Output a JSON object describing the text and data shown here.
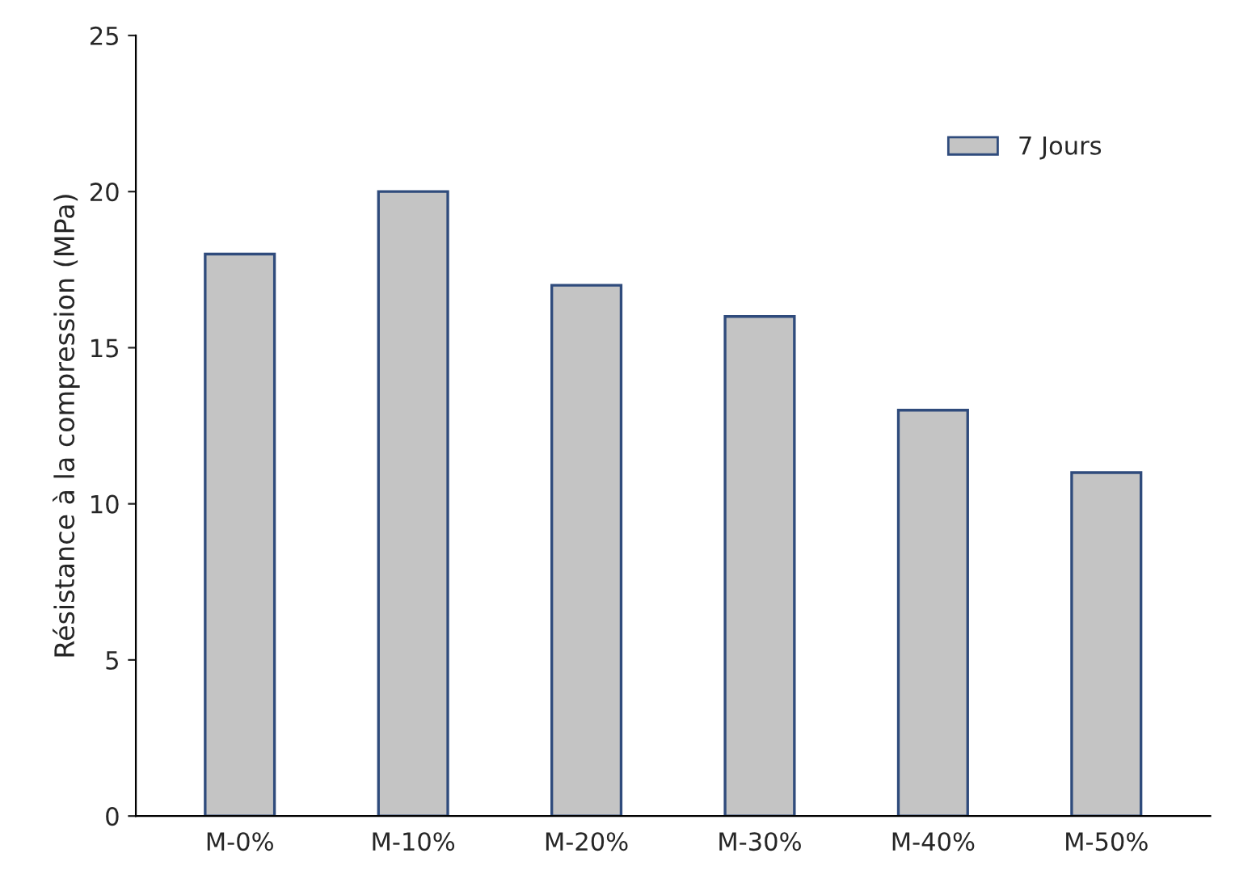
{
  "chart_data": {
    "type": "bar",
    "ylabel": "Résistance à la compression (MPa)",
    "categories": [
      "M-0%",
      "M-10%",
      "M-20%",
      "M-30%",
      "M-40%",
      "M-50%"
    ],
    "series": [
      {
        "name": "7 Jours",
        "color": "#c4c4c4",
        "values": [
          18,
          20,
          17,
          16,
          13,
          11
        ]
      }
    ],
    "ylim": [
      0,
      25
    ],
    "yticks": [
      0,
      5,
      10,
      15,
      20,
      25
    ],
    "grid": false,
    "legend": "top right"
  }
}
